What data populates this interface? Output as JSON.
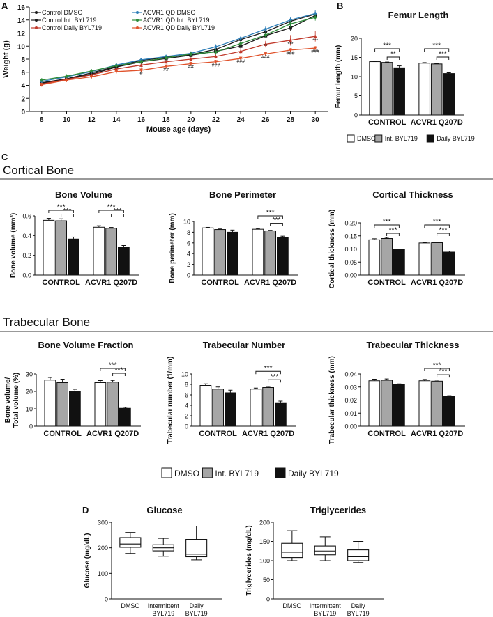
{
  "colors": {
    "dmso": "#ffffff",
    "int": "#a6a6a6",
    "daily": "#111111",
    "ctrl_dmso": "#1a1a1a",
    "ctrl_int": "#1a1a1a",
    "ctrl_daily": "#c0392b",
    "acvr_dmso": "#2f7fb8",
    "acvr_int": "#2e8b3a",
    "acvr_daily": "#e0522b"
  },
  "chart_data": [
    {
      "id": "weight",
      "panel": "A",
      "type": "line",
      "xlabel": "Mouse age (days)",
      "ylabel": "Weight (g)",
      "xlim": [
        7,
        31
      ],
      "ylim": [
        0,
        16
      ],
      "xticks": [
        8,
        10,
        12,
        14,
        16,
        18,
        20,
        22,
        24,
        26,
        28,
        30
      ],
      "yticks": [
        0,
        2,
        4,
        6,
        8,
        10,
        12,
        14,
        16
      ],
      "x": [
        8,
        10,
        12,
        14,
        16,
        18,
        20,
        22,
        24,
        26,
        28,
        30
      ],
      "series": [
        {
          "name": "Control DMSO",
          "marker": "circle",
          "color_key": "ctrl_dmso",
          "values": [
            4.3,
            5.0,
            5.9,
            6.9,
            7.8,
            8.3,
            8.7,
            9.5,
            11.0,
            12.2,
            13.8,
            14.9
          ],
          "err": [
            0.3,
            0.3,
            0.3,
            0.3,
            0.3,
            0.3,
            0.3,
            0.4,
            0.4,
            0.4,
            0.5,
            0.5
          ]
        },
        {
          "name": "Control Int. BYL719",
          "marker": "square",
          "color_key": "ctrl_int",
          "values": [
            4.4,
            5.0,
            5.7,
            6.8,
            7.6,
            8.1,
            8.6,
            9.2,
            10.0,
            11.6,
            12.8,
            14.7
          ],
          "err": [
            0.3,
            0.3,
            0.3,
            0.3,
            0.3,
            0.3,
            0.3,
            0.4,
            0.4,
            0.4,
            0.5,
            0.5
          ]
        },
        {
          "name": "Control Daily BYL719",
          "marker": "triangle",
          "color_key": "ctrl_daily",
          "values": [
            4.2,
            4.9,
            5.6,
            6.5,
            7.1,
            7.6,
            8.0,
            8.4,
            9.2,
            10.3,
            10.9,
            11.5
          ],
          "err": [
            0.3,
            0.3,
            0.3,
            0.3,
            0.3,
            0.3,
            0.3,
            0.3,
            0.4,
            0.5,
            0.8,
            0.8
          ]
        },
        {
          "name": "ACVR1 QD DMSO",
          "marker": "diamond",
          "color_key": "acvr_dmso",
          "values": [
            4.6,
            5.3,
            6.1,
            7.1,
            7.9,
            8.4,
            8.9,
            9.9,
            11.2,
            12.6,
            14.0,
            15.0
          ],
          "err": [
            0.3,
            0.3,
            0.3,
            0.3,
            0.3,
            0.3,
            0.3,
            0.4,
            0.4,
            0.4,
            0.5,
            0.5
          ]
        },
        {
          "name": "ACVR1 QD Int. BYL719",
          "marker": "diamond",
          "color_key": "acvr_int",
          "values": [
            4.8,
            5.4,
            6.2,
            7.0,
            7.6,
            8.2,
            8.8,
            9.1,
            10.4,
            11.7,
            13.4,
            14.4
          ],
          "err": [
            0.3,
            0.3,
            0.3,
            0.3,
            0.3,
            0.3,
            0.3,
            0.4,
            0.4,
            0.4,
            0.5,
            0.5
          ]
        },
        {
          "name": "ACVR1 QD Daily BYL719",
          "marker": "inverted-triangle",
          "color_key": "acvr_daily",
          "values": [
            4.1,
            4.8,
            5.3,
            6.1,
            6.3,
            6.9,
            7.3,
            7.6,
            8.1,
            8.8,
            9.4,
            9.7
          ],
          "err": [
            0.3,
            0.3,
            0.3,
            0.3,
            0.3,
            0.3,
            0.3,
            0.3,
            0.3,
            0.3,
            0.3,
            0.3
          ]
        }
      ],
      "annotations": [
        {
          "x": 16,
          "y": 5.6,
          "text": "#"
        },
        {
          "x": 18,
          "y": 6.2,
          "text": "##"
        },
        {
          "x": 20,
          "y": 6.6,
          "text": "##"
        },
        {
          "x": 22,
          "y": 6.9,
          "text": "###"
        },
        {
          "x": 24,
          "y": 7.4,
          "text": "###"
        },
        {
          "x": 26,
          "y": 8.1,
          "text": "###"
        },
        {
          "x": 28,
          "y": 8.7,
          "text": "###"
        },
        {
          "x": 30,
          "y": 9.0,
          "text": "###"
        },
        {
          "x": 26,
          "y": 9.8,
          "text": "**"
        },
        {
          "x": 28,
          "y": 10.1,
          "text": "***"
        },
        {
          "x": 30,
          "y": 10.6,
          "text": "***"
        }
      ]
    },
    {
      "id": "femur",
      "panel": "B",
      "type": "bar",
      "title": "Femur Length",
      "ylabel": "Femur length (mm)",
      "ylim": [
        0,
        20
      ],
      "yticks": [
        0,
        5,
        10,
        15,
        20
      ],
      "groups": [
        "CONTROL",
        "ACVR1 Q207D"
      ],
      "series": [
        {
          "name": "DMSO",
          "color_key": "dmso",
          "values": [
            13.9,
            13.5
          ],
          "err": [
            0.1,
            0.15
          ]
        },
        {
          "name": "Int. BYL719",
          "color_key": "int",
          "values": [
            13.7,
            13.3
          ],
          "err": [
            0.1,
            0.1
          ]
        },
        {
          "name": "Daily BYL719",
          "color_key": "daily",
          "values": [
            12.3,
            10.8
          ],
          "err": [
            0.5,
            0.2
          ]
        }
      ],
      "brackets": [
        {
          "group": 0,
          "from": 0,
          "to": 2,
          "label": "***",
          "level": 2
        },
        {
          "group": 0,
          "from": 1,
          "to": 2,
          "label": "**",
          "level": 1
        },
        {
          "group": 1,
          "from": 0,
          "to": 2,
          "label": "***",
          "level": 2
        },
        {
          "group": 1,
          "from": 1,
          "to": 2,
          "label": "***",
          "level": 1
        }
      ]
    },
    {
      "id": "bone_volume",
      "panel": "C",
      "type": "bar",
      "title": "Bone Volume",
      "ylabel": "Bone volume (mm³)",
      "ylim": [
        0,
        0.6
      ],
      "yticks": [
        0.0,
        0.2,
        0.4,
        0.6
      ],
      "groups": [
        "CONTROL",
        "ACVR1 Q207D"
      ],
      "series": [
        {
          "name": "DMSO",
          "color_key": "dmso",
          "values": [
            0.555,
            0.485
          ],
          "err": [
            0.02,
            0.015
          ]
        },
        {
          "name": "Int. BYL719",
          "color_key": "int",
          "values": [
            0.55,
            0.475
          ],
          "err": [
            0.02,
            0.008
          ]
        },
        {
          "name": "Daily BYL719",
          "color_key": "daily",
          "values": [
            0.365,
            0.285
          ],
          "err": [
            0.02,
            0.015
          ]
        }
      ],
      "brackets": [
        {
          "group": 0,
          "from": 0,
          "to": 2,
          "label": "***",
          "level": 2
        },
        {
          "group": 0,
          "from": 1,
          "to": 2,
          "label": "***",
          "level": 1
        },
        {
          "group": 1,
          "from": 0,
          "to": 2,
          "label": "***",
          "level": 2
        },
        {
          "group": 1,
          "from": 1,
          "to": 2,
          "label": "***",
          "level": 1
        }
      ]
    },
    {
      "id": "bone_perimeter",
      "panel": "C",
      "type": "bar",
      "title": "Bone Perimeter",
      "ylabel": "Bone perimeter (mm)",
      "ylim": [
        0,
        10
      ],
      "yticks": [
        0,
        2,
        4,
        6,
        8,
        10
      ],
      "groups": [
        "CONTROL",
        "ACVR1 Q207D"
      ],
      "series": [
        {
          "name": "DMSO",
          "color_key": "dmso",
          "values": [
            8.8,
            8.55
          ],
          "err": [
            0.1,
            0.15
          ]
        },
        {
          "name": "Int. BYL719",
          "color_key": "int",
          "values": [
            8.5,
            8.25
          ],
          "err": [
            0.1,
            0.1
          ]
        },
        {
          "name": "Daily BYL719",
          "color_key": "daily",
          "values": [
            8.0,
            7.05
          ],
          "err": [
            0.4,
            0.2
          ]
        }
      ],
      "brackets": [
        {
          "group": 1,
          "from": 0,
          "to": 2,
          "label": "***",
          "level": 2
        },
        {
          "group": 1,
          "from": 1,
          "to": 2,
          "label": "***",
          "level": 1
        }
      ]
    },
    {
      "id": "cortical_thickness",
      "panel": "C",
      "type": "bar",
      "title": "Cortical Thickness",
      "ylabel": "Cortical thickness (mm)",
      "ylim": [
        0,
        0.2
      ],
      "yticks": [
        0.0,
        0.05,
        0.1,
        0.15,
        0.2
      ],
      "groups": [
        "CONTROL",
        "ACVR1 Q207D"
      ],
      "series": [
        {
          "name": "DMSO",
          "color_key": "dmso",
          "values": [
            0.135,
            0.123
          ],
          "err": [
            0.004,
            0.002
          ]
        },
        {
          "name": "Int. BYL719",
          "color_key": "int",
          "values": [
            0.14,
            0.124
          ],
          "err": [
            0.004,
            0.002
          ]
        },
        {
          "name": "Daily BYL719",
          "color_key": "daily",
          "values": [
            0.098,
            0.088
          ],
          "err": [
            0.002,
            0.004
          ]
        }
      ],
      "brackets": [
        {
          "group": 0,
          "from": 0,
          "to": 2,
          "label": "***",
          "level": 2
        },
        {
          "group": 0,
          "from": 1,
          "to": 2,
          "label": "***",
          "level": 1
        },
        {
          "group": 1,
          "from": 0,
          "to": 2,
          "label": "***",
          "level": 2
        },
        {
          "group": 1,
          "from": 1,
          "to": 2,
          "label": "***",
          "level": 1
        }
      ]
    },
    {
      "id": "bvf",
      "panel": "C",
      "type": "bar",
      "title": "Bone Volume Fraction",
      "ylabel": "Bone volume/",
      "ylabel2": "Total volume (%)",
      "ylim": [
        0,
        30
      ],
      "yticks": [
        0,
        10,
        20,
        30
      ],
      "groups": [
        "CONTROL",
        "ACVR1 Q207D"
      ],
      "series": [
        {
          "name": "DMSO",
          "color_key": "dmso",
          "values": [
            26.5,
            25.0
          ],
          "err": [
            1.5,
            1.2
          ]
        },
        {
          "name": "Int. BYL719",
          "color_key": "int",
          "values": [
            25.0,
            25.3
          ],
          "err": [
            2.0,
            1.0
          ]
        },
        {
          "name": "Daily BYL719",
          "color_key": "daily",
          "values": [
            20.0,
            10.3
          ],
          "err": [
            1.2,
            0.6
          ]
        }
      ],
      "brackets": [
        {
          "group": 1,
          "from": 0,
          "to": 2,
          "label": "***",
          "level": 2
        },
        {
          "group": 1,
          "from": 1,
          "to": 2,
          "label": "***",
          "level": 1
        }
      ]
    },
    {
      "id": "trab_number",
      "panel": "C",
      "type": "bar",
      "title": "Trabecular Number",
      "ylabel": "Trabecular number (1/mm)",
      "ylim": [
        0,
        10
      ],
      "yticks": [
        0,
        2,
        4,
        6,
        8,
        10
      ],
      "groups": [
        "CONTROL",
        "ACVR1 Q207D"
      ],
      "series": [
        {
          "name": "DMSO",
          "color_key": "dmso",
          "values": [
            7.8,
            7.1
          ],
          "err": [
            0.3,
            0.2
          ]
        },
        {
          "name": "Int. BYL719",
          "color_key": "int",
          "values": [
            7.1,
            7.4
          ],
          "err": [
            0.4,
            0.2
          ]
        },
        {
          "name": "Daily BYL719",
          "color_key": "daily",
          "values": [
            6.4,
            4.5
          ],
          "err": [
            0.5,
            0.3
          ]
        }
      ],
      "brackets": [
        {
          "group": 1,
          "from": 0,
          "to": 2,
          "label": "***",
          "level": 2
        },
        {
          "group": 1,
          "from": 1,
          "to": 2,
          "label": "***",
          "level": 1
        }
      ]
    },
    {
      "id": "trab_thickness",
      "panel": "C",
      "type": "bar",
      "title": "Trabecular Thickness",
      "ylabel": "Trabecular thickness (mm)",
      "ylim": [
        0,
        0.04
      ],
      "yticks": [
        0.0,
        0.01,
        0.02,
        0.03,
        0.04
      ],
      "groups": [
        "CONTROL",
        "ACVR1 Q207D"
      ],
      "series": [
        {
          "name": "DMSO",
          "color_key": "dmso",
          "values": [
            0.0348,
            0.0348
          ],
          "err": [
            0.0012,
            0.001
          ]
        },
        {
          "name": "Int. BYL719",
          "color_key": "int",
          "values": [
            0.0352,
            0.0345
          ],
          "err": [
            0.001,
            0.0008
          ]
        },
        {
          "name": "Daily BYL719",
          "color_key": "daily",
          "values": [
            0.0318,
            0.0228
          ],
          "err": [
            0.0006,
            0.0006
          ]
        }
      ],
      "brackets": [
        {
          "group": 1,
          "from": 0,
          "to": 2,
          "label": "***",
          "level": 2
        },
        {
          "group": 1,
          "from": 1,
          "to": 2,
          "label": "***",
          "level": 1
        }
      ]
    },
    {
      "id": "glucose",
      "panel": "D",
      "type": "box",
      "title": "Glucose",
      "ylabel": "Glucose (mg/dL)",
      "ylim": [
        0,
        300
      ],
      "yticks": [
        0,
        100,
        200,
        300
      ],
      "categories": [
        [
          "DMSO"
        ],
        [
          "Intermittent",
          "BYL719"
        ],
        [
          "Daily",
          "BYL719"
        ]
      ],
      "boxes": [
        {
          "min": 178,
          "q1": 202,
          "median": 215,
          "q3": 240,
          "max": 260
        },
        {
          "min": 167,
          "q1": 188,
          "median": 200,
          "q3": 212,
          "max": 237
        },
        {
          "min": 153,
          "q1": 165,
          "median": 175,
          "q3": 233,
          "max": 285
        }
      ]
    },
    {
      "id": "triglycerides",
      "panel": "D",
      "type": "box",
      "title": "Triglycerides",
      "ylabel": "Triglycerides (mg/dL)",
      "ylim": [
        0,
        200
      ],
      "yticks": [
        0,
        50,
        100,
        150,
        200
      ],
      "categories": [
        [
          "DMSO"
        ],
        [
          "Intermittent",
          "BYL719"
        ],
        [
          "Daily",
          "BYL719"
        ]
      ],
      "boxes": [
        {
          "min": 100,
          "q1": 108,
          "median": 122,
          "q3": 145,
          "max": 178
        },
        {
          "min": 100,
          "q1": 115,
          "median": 125,
          "q3": 138,
          "max": 162
        },
        {
          "min": 95,
          "q1": 100,
          "median": 110,
          "q3": 128,
          "max": 150
        }
      ]
    }
  ],
  "labels": {
    "panel_a": "A",
    "panel_b": "B",
    "panel_c": "C",
    "panel_d": "D",
    "section_cortical": "Cortical Bone",
    "section_trabecular": "Trabecular Bone",
    "legend_dmso": "DMSO",
    "legend_int": "Int. BYL719",
    "legend_daily": "Daily BYL719"
  }
}
